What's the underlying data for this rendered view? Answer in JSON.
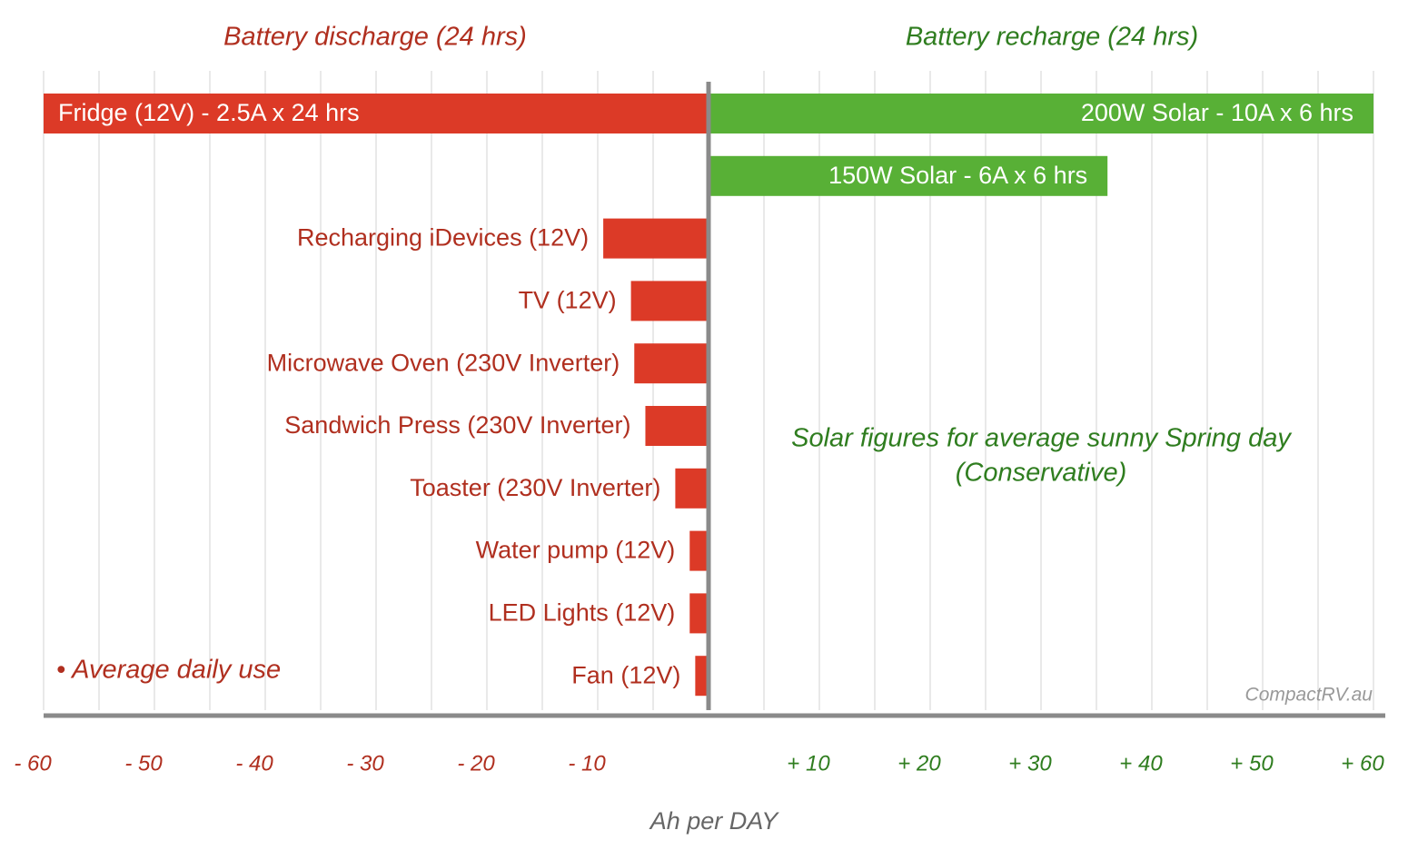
{
  "chart_data": {
    "type": "diverging-bar",
    "xlabel": "Ah per DAY",
    "xlim": [
      -60,
      60
    ],
    "xticks": [
      {
        "value": -60,
        "label": "- 60"
      },
      {
        "value": -50,
        "label": "- 50"
      },
      {
        "value": -40,
        "label": "- 40"
      },
      {
        "value": -30,
        "label": "- 30"
      },
      {
        "value": -20,
        "label": "- 20"
      },
      {
        "value": -10,
        "label": "- 10"
      },
      {
        "value": 10,
        "label": "+ 10"
      },
      {
        "value": 20,
        "label": "+ 20"
      },
      {
        "value": 30,
        "label": "+ 30"
      },
      {
        "value": 40,
        "label": "+ 40"
      },
      {
        "value": 50,
        "label": "+ 50"
      },
      {
        "value": 60,
        "label": "+ 60"
      }
    ],
    "minor_xticks": [
      -55,
      -45,
      -35,
      -25,
      -15,
      -5,
      5,
      15,
      25,
      35,
      45,
      55
    ],
    "grid": true,
    "series": [
      {
        "name": "Battery discharge (24 hrs)",
        "color": "#dc3a27",
        "text_color": "#b02f1f",
        "labels": [
          "Fridge (12V) - 2.5A x 24 hrs",
          null,
          "Recharging iDevices (12V)",
          "TV (12V)",
          "Microwave Oven (230V Inverter)",
          "Sandwich Press (230V Inverter)",
          "Toaster (230V Inverter)",
          "Water pump (12V)",
          "LED Lights (12V)",
          "Fan (12V)"
        ],
        "values": [
          -60,
          null,
          -9.5,
          -7,
          -6.7,
          -5.7,
          -3,
          -1.7,
          -1.7,
          -1.2
        ]
      },
      {
        "name": "Battery recharge (24 hrs)",
        "color": "#58b036",
        "text_color": "#2f7d1f",
        "labels": [
          "200W Solar - 10A x 6 hrs",
          "150W Solar - 6A x 6 hrs",
          null,
          null,
          null,
          null,
          null,
          null,
          null,
          null
        ],
        "values": [
          60,
          36,
          null,
          null,
          null,
          null,
          null,
          null,
          null,
          null
        ]
      }
    ],
    "annotations": [
      "Solar figures for average sunny Spring day",
      "(Conservative)",
      "• Average daily use",
      "CompactRV.au"
    ]
  }
}
